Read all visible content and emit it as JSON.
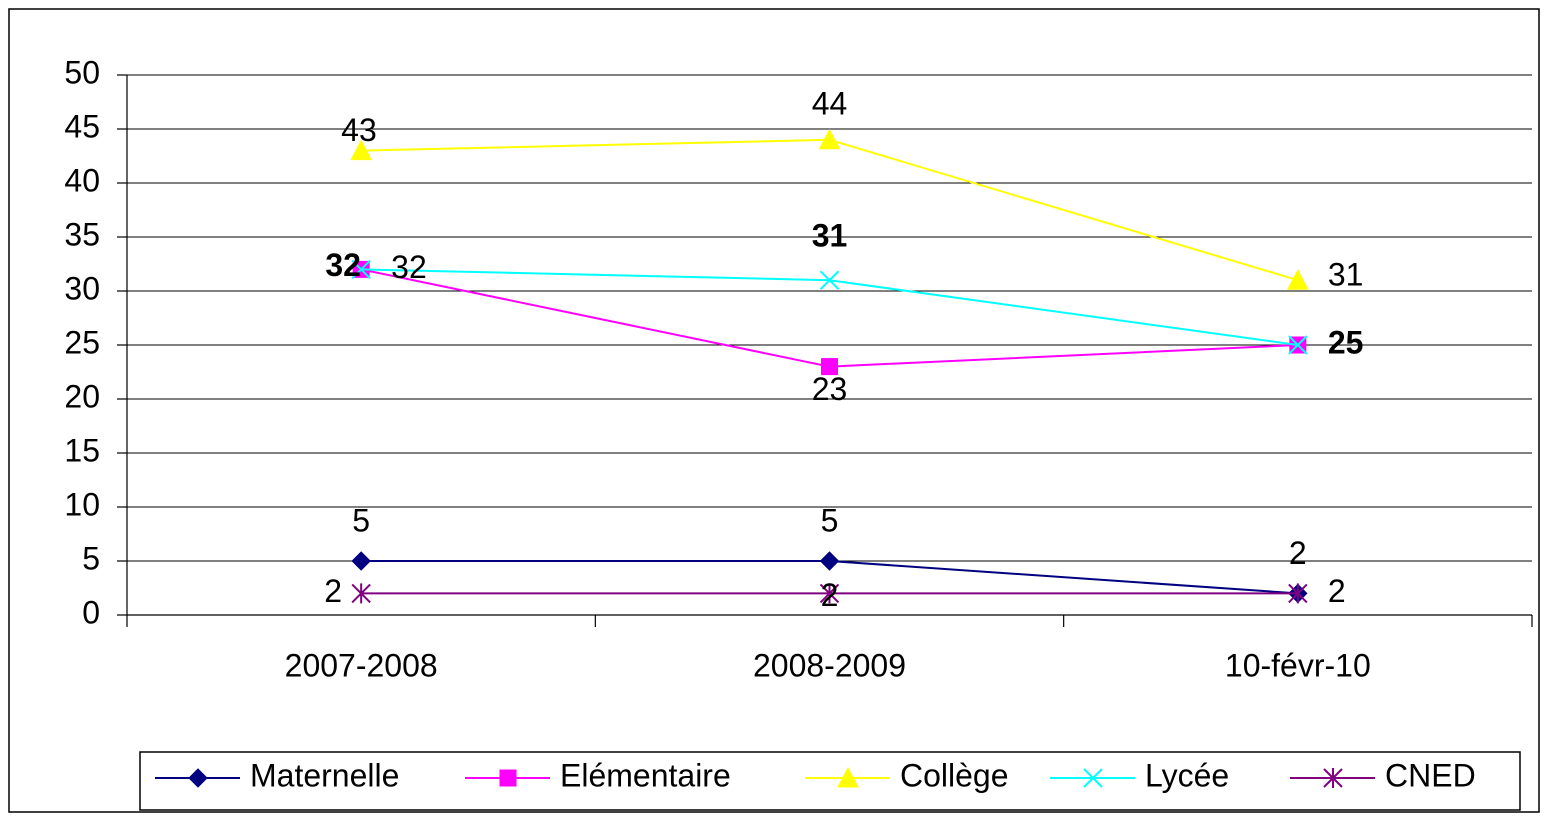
{
  "chart_data": {
    "type": "line",
    "categories": [
      "2007-2008",
      "2008-2009",
      "10-févr-10"
    ],
    "series": [
      {
        "name": "Maternelle",
        "color": "#000080",
        "marker": "diamond",
        "values": [
          5,
          5,
          2
        ]
      },
      {
        "name": "Elémentaire",
        "color": "#FF00FF",
        "marker": "square",
        "values": [
          32,
          23,
          25
        ]
      },
      {
        "name": "Collège",
        "color": "#FFFF00",
        "marker": "triangle",
        "values": [
          43,
          44,
          31
        ]
      },
      {
        "name": "Lycée",
        "color": "#00FFFF",
        "marker": "x",
        "values": [
          32,
          31,
          25
        ]
      },
      {
        "name": "CNED",
        "color": "#800080",
        "marker": "asterisk",
        "values": [
          2,
          2,
          2
        ]
      }
    ],
    "ylim": [
      0,
      50
    ],
    "yticks": [
      0,
      5,
      10,
      15,
      20,
      25,
      30,
      35,
      40,
      45,
      50
    ],
    "grid": true,
    "legend": "bottom"
  }
}
